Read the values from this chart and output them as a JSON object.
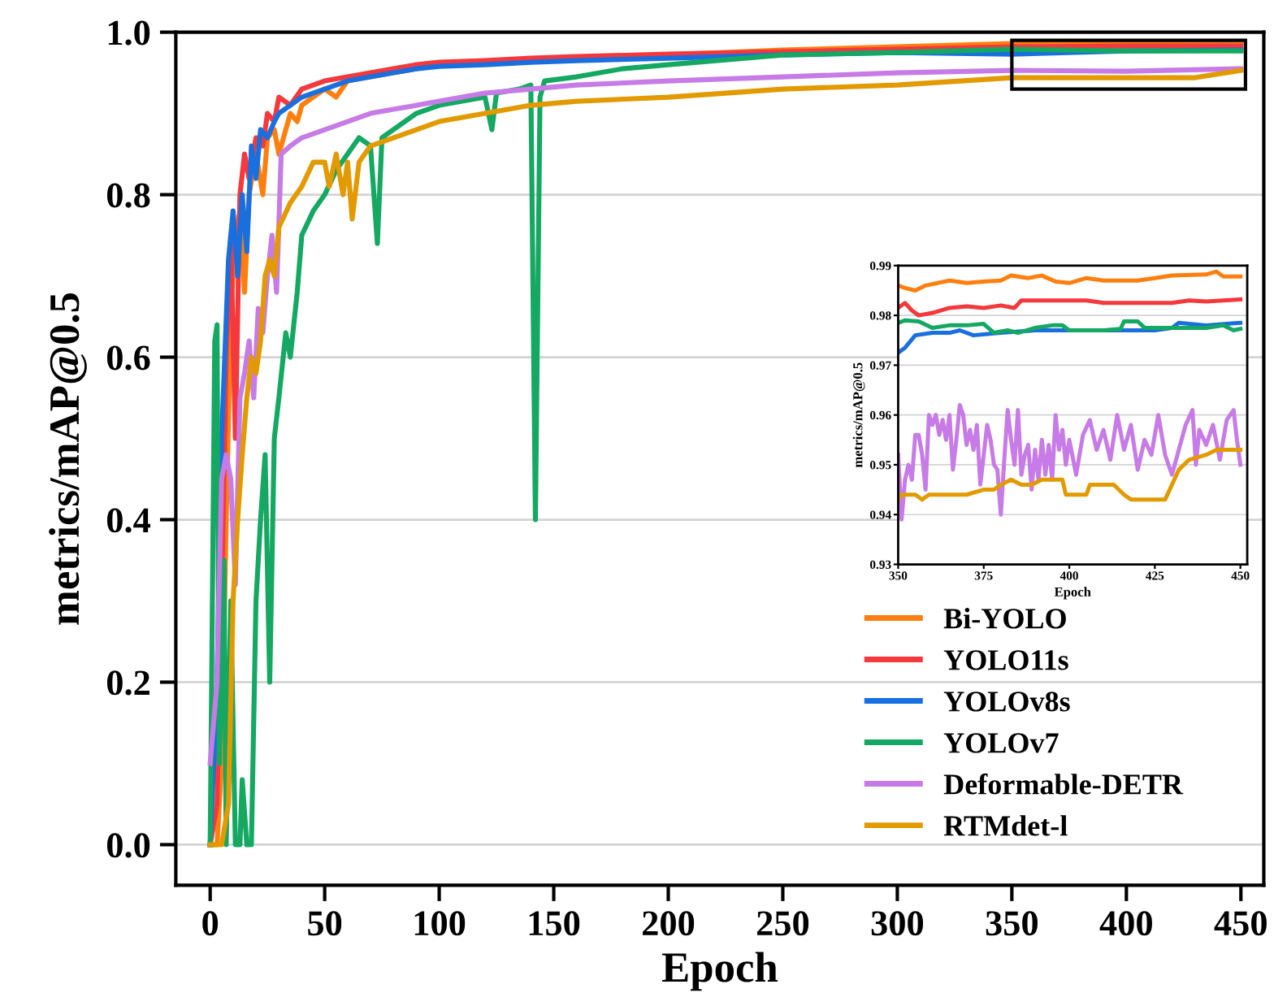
{
  "chart_data": [
    {
      "type": "line",
      "xlabel": "Epoch",
      "ylabel": "metrics/mAP@0.5",
      "xlim": [
        -15,
        460
      ],
      "ylim": [
        -0.05,
        1.0
      ],
      "xticks": [
        0,
        50,
        100,
        150,
        200,
        250,
        300,
        350,
        400,
        450
      ],
      "yticks": [
        {
          "value": 0,
          "label": "0.0"
        },
        0.2,
        0.4,
        0.6,
        0.8,
        {
          "value": 1,
          "label": "1.0"
        }
      ],
      "grid": "y",
      "legend": "bottom right",
      "line_style": "solid",
      "marker": "none",
      "series": [
        {
          "name": "Bi-YOLO",
          "color": "#ff7f0e",
          "x": [
            0,
            3,
            5,
            7,
            9,
            11,
            13,
            15,
            17,
            20,
            23,
            25,
            28,
            30,
            33,
            35,
            38,
            40,
            45,
            50,
            55,
            60,
            70,
            80,
            90,
            100,
            120,
            140,
            160,
            180,
            200,
            250,
            300,
            350,
            400,
            450
          ],
          "values": [
            0,
            0,
            0.1,
            0.4,
            0.65,
            0.75,
            0.78,
            0.68,
            0.8,
            0.85,
            0.8,
            0.87,
            0.88,
            0.85,
            0.88,
            0.9,
            0.89,
            0.91,
            0.92,
            0.93,
            0.92,
            0.94,
            0.945,
            0.95,
            0.955,
            0.96,
            0.962,
            0.965,
            0.968,
            0.97,
            0.972,
            0.978,
            0.982,
            0.986,
            0.987,
            0.988
          ]
        },
        {
          "name": "YOLO11s",
          "color": "#f5383c",
          "x": [
            0,
            3,
            5,
            7,
            9,
            11,
            13,
            15,
            17,
            20,
            23,
            25,
            28,
            30,
            35,
            40,
            45,
            50,
            60,
            70,
            80,
            90,
            100,
            120,
            140,
            160,
            200,
            250,
            300,
            350,
            400,
            450
          ],
          "values": [
            0,
            0.05,
            0.3,
            0.6,
            0.75,
            0.5,
            0.8,
            0.85,
            0.82,
            0.87,
            0.86,
            0.9,
            0.89,
            0.92,
            0.91,
            0.93,
            0.935,
            0.94,
            0.945,
            0.95,
            0.955,
            0.96,
            0.963,
            0.965,
            0.968,
            0.97,
            0.973,
            0.976,
            0.979,
            0.982,
            0.983,
            0.983
          ]
        },
        {
          "name": "YOLOv8s",
          "color": "#1a6fdf",
          "x": [
            0,
            3,
            5,
            8,
            10,
            12,
            14,
            16,
            18,
            20,
            22,
            25,
            28,
            30,
            35,
            40,
            45,
            50,
            60,
            70,
            80,
            90,
            100,
            120,
            140,
            160,
            200,
            250,
            300,
            350,
            400,
            450
          ],
          "values": [
            0,
            0.2,
            0.5,
            0.72,
            0.78,
            0.7,
            0.8,
            0.73,
            0.86,
            0.82,
            0.88,
            0.87,
            0.89,
            0.9,
            0.91,
            0.92,
            0.925,
            0.93,
            0.94,
            0.945,
            0.95,
            0.955,
            0.958,
            0.96,
            0.963,
            0.965,
            0.968,
            0.972,
            0.975,
            0.973,
            0.977,
            0.978
          ]
        },
        {
          "name": "YOLOv7",
          "color": "#14a862",
          "x": [
            0,
            2,
            3,
            4,
            6,
            7,
            9,
            11,
            13,
            14,
            16,
            18,
            20,
            22,
            24,
            26,
            28,
            30,
            33,
            35,
            38,
            40,
            45,
            50,
            55,
            60,
            65,
            70,
            73,
            75,
            80,
            90,
            100,
            110,
            120,
            123,
            125,
            135,
            140,
            142,
            144,
            146,
            160,
            180,
            200,
            250,
            300,
            350,
            400,
            450
          ],
          "values": [
            0,
            0.62,
            0.64,
            0.1,
            0.35,
            0,
            0.3,
            0,
            0,
            0.08,
            0,
            0,
            0.3,
            0.4,
            0.48,
            0.2,
            0.5,
            0.55,
            0.63,
            0.6,
            0.68,
            0.75,
            0.78,
            0.8,
            0.83,
            0.85,
            0.87,
            0.86,
            0.74,
            0.87,
            0.88,
            0.9,
            0.91,
            0.915,
            0.92,
            0.88,
            0.925,
            0.93,
            0.935,
            0.4,
            0.92,
            0.94,
            0.945,
            0.955,
            0.96,
            0.972,
            0.975,
            0.979,
            0.977,
            0.977
          ]
        },
        {
          "name": "Deformable-DETR",
          "color": "#c77be6",
          "x": [
            0,
            3,
            5,
            7,
            9,
            11,
            13,
            15,
            17,
            19,
            21,
            23,
            25,
            27,
            29,
            31,
            35,
            40,
            50,
            60,
            70,
            80,
            100,
            120,
            140,
            160,
            200,
            250,
            300,
            350,
            400,
            450
          ],
          "values": [
            0.1,
            0.2,
            0.45,
            0.48,
            0.45,
            0.32,
            0.55,
            0.58,
            0.62,
            0.55,
            0.66,
            0.63,
            0.7,
            0.75,
            0.68,
            0.85,
            0.86,
            0.87,
            0.88,
            0.89,
            0.9,
            0.905,
            0.915,
            0.925,
            0.93,
            0.935,
            0.94,
            0.945,
            0.95,
            0.953,
            0.952,
            0.955
          ]
        },
        {
          "name": "RTMdet-l",
          "color": "#e29a00",
          "x": [
            0,
            5,
            8,
            10,
            12,
            14,
            16,
            18,
            20,
            22,
            24,
            26,
            28,
            30,
            35,
            40,
            45,
            50,
            52,
            55,
            58,
            60,
            62,
            65,
            70,
            80,
            90,
            100,
            120,
            140,
            160,
            200,
            250,
            300,
            350,
            400,
            430,
            450
          ],
          "values": [
            0,
            0,
            0.05,
            0.3,
            0.4,
            0.48,
            0.55,
            0.6,
            0.58,
            0.62,
            0.7,
            0.72,
            0.7,
            0.76,
            0.79,
            0.81,
            0.84,
            0.84,
            0.81,
            0.85,
            0.8,
            0.84,
            0.77,
            0.84,
            0.86,
            0.87,
            0.88,
            0.89,
            0.9,
            0.91,
            0.915,
            0.92,
            0.93,
            0.935,
            0.944,
            0.944,
            0.944,
            0.953
          ]
        }
      ]
    },
    {
      "type": "line",
      "xlabel": "Epoch",
      "ylabel": "metrics/mAP@0.5",
      "xlim": [
        350,
        452
      ],
      "ylim": [
        0.93,
        0.99
      ],
      "xticks": [
        350,
        375,
        400,
        425,
        450
      ],
      "yticks": [
        0.93,
        0.94,
        0.95,
        0.96,
        0.97,
        0.98,
        0.99
      ],
      "grid": "y",
      "line_style": "solid",
      "marker": "none",
      "series": [
        {
          "color": "#ff7f0e",
          "x": [
            350,
            352,
            355,
            358,
            365,
            370,
            375,
            380,
            383,
            388,
            392,
            396,
            400,
            405,
            410,
            420,
            425,
            430,
            440,
            443,
            445,
            450
          ],
          "values": [
            0.986,
            0.9855,
            0.985,
            0.986,
            0.987,
            0.9865,
            0.9868,
            0.987,
            0.988,
            0.9875,
            0.988,
            0.9868,
            0.9865,
            0.9875,
            0.987,
            0.987,
            0.9875,
            0.988,
            0.9882,
            0.9888,
            0.9878,
            0.9878
          ]
        },
        {
          "color": "#f5383c",
          "x": [
            350,
            352,
            354,
            356,
            360,
            365,
            370,
            375,
            380,
            384,
            386,
            395,
            405,
            410,
            430,
            435,
            440,
            445,
            450
          ],
          "values": [
            0.9815,
            0.9825,
            0.981,
            0.98,
            0.9805,
            0.9815,
            0.9818,
            0.9815,
            0.982,
            0.9815,
            0.983,
            0.983,
            0.983,
            0.9825,
            0.9825,
            0.983,
            0.9828,
            0.983,
            0.9832
          ]
        },
        {
          "color": "#1a6fdf",
          "x": [
            350,
            352,
            355,
            360,
            365,
            368,
            372,
            380,
            390,
            400,
            410,
            425,
            430,
            432,
            440,
            450
          ],
          "values": [
            0.9725,
            0.9735,
            0.976,
            0.9765,
            0.9765,
            0.977,
            0.976,
            0.9765,
            0.977,
            0.977,
            0.977,
            0.977,
            0.9775,
            0.9785,
            0.978,
            0.9785
          ]
        },
        {
          "color": "#14a862",
          "x": [
            350,
            352,
            356,
            360,
            365,
            370,
            375,
            378,
            382,
            385,
            390,
            395,
            398,
            400,
            410,
            415,
            416,
            420,
            422,
            430,
            440,
            445,
            448,
            450
          ],
          "values": [
            0.9785,
            0.979,
            0.9788,
            0.9775,
            0.978,
            0.978,
            0.9783,
            0.9765,
            0.977,
            0.9765,
            0.9775,
            0.978,
            0.978,
            0.977,
            0.977,
            0.9773,
            0.9788,
            0.9788,
            0.9775,
            0.9775,
            0.9775,
            0.978,
            0.977,
            0.9773
          ]
        },
        {
          "color": "#c77be6",
          "x": [
            350,
            351,
            352,
            353,
            354,
            355,
            356,
            357,
            358,
            359,
            360,
            361,
            362,
            363,
            364,
            365,
            366,
            367,
            368,
            369,
            370,
            371,
            372,
            373,
            374,
            375,
            376,
            377,
            378,
            379,
            380,
            381,
            382,
            383,
            384,
            385,
            386,
            387,
            388,
            389,
            390,
            391,
            392,
            393,
            394,
            395,
            396,
            397,
            398,
            399,
            400,
            402,
            404,
            406,
            408,
            410,
            412,
            414,
            416,
            418,
            420,
            422,
            424,
            426,
            428,
            430,
            432,
            434,
            436,
            437,
            438,
            440,
            442,
            444,
            446,
            448,
            449,
            450
          ],
          "values": [
            0.952,
            0.939,
            0.947,
            0.95,
            0.947,
            0.956,
            0.956,
            0.952,
            0.945,
            0.96,
            0.958,
            0.96,
            0.956,
            0.959,
            0.955,
            0.96,
            0.949,
            0.955,
            0.962,
            0.96,
            0.954,
            0.957,
            0.953,
            0.958,
            0.946,
            0.952,
            0.958,
            0.955,
            0.95,
            0.949,
            0.94,
            0.951,
            0.961,
            0.955,
            0.95,
            0.961,
            0.948,
            0.952,
            0.954,
            0.945,
            0.953,
            0.947,
            0.955,
            0.948,
            0.954,
            0.947,
            0.96,
            0.953,
            0.957,
            0.95,
            0.955,
            0.948,
            0.956,
            0.959,
            0.953,
            0.957,
            0.951,
            0.96,
            0.953,
            0.958,
            0.949,
            0.955,
            0.952,
            0.96,
            0.952,
            0.948,
            0.953,
            0.958,
            0.961,
            0.95,
            0.957,
            0.954,
            0.958,
            0.951,
            0.959,
            0.961,
            0.955,
            0.95
          ]
        },
        {
          "color": "#e29a00",
          "x": [
            350,
            351,
            355,
            357,
            359,
            364,
            370,
            375,
            378,
            380,
            383,
            386,
            389,
            392,
            398,
            399,
            405,
            406,
            413,
            416,
            418,
            428,
            430,
            432,
            435,
            440,
            443,
            450
          ],
          "values": [
            0.943,
            0.944,
            0.944,
            0.943,
            0.944,
            0.944,
            0.944,
            0.945,
            0.945,
            0.946,
            0.947,
            0.946,
            0.946,
            0.947,
            0.947,
            0.944,
            0.944,
            0.946,
            0.946,
            0.944,
            0.943,
            0.943,
            0.946,
            0.949,
            0.951,
            0.952,
            0.953,
            0.953
          ]
        }
      ]
    }
  ]
}
